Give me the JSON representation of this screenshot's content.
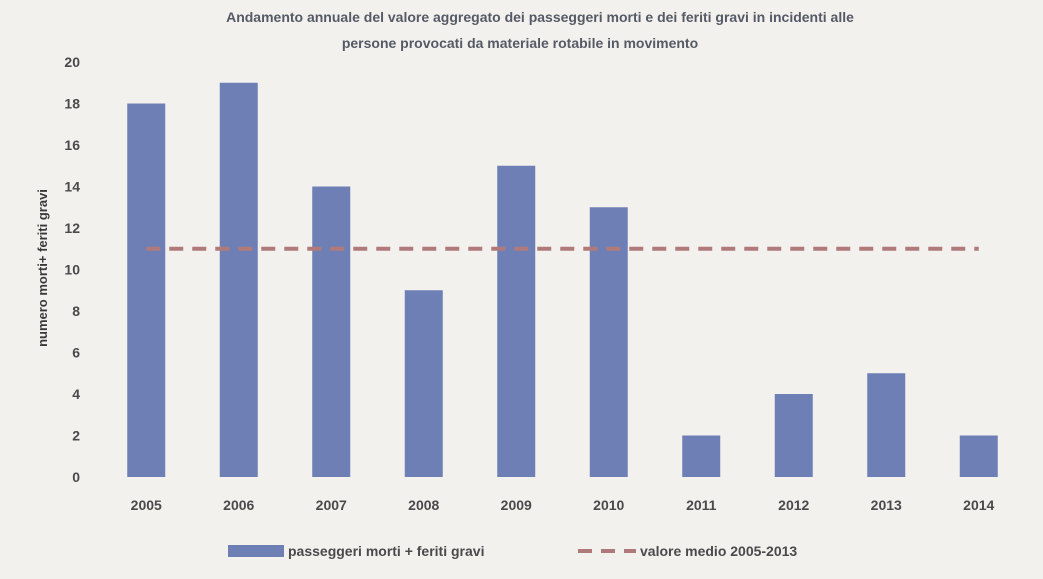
{
  "chart_data": {
    "type": "bar",
    "title_line1": "Andamento annuale del valore aggregato dei passeggeri morti e dei feriti gravi in incidenti alle",
    "title_line2": "persone provocati da materiale rotabile in movimento",
    "xlabel": "",
    "ylabel": "numero morti+ feriti gravi",
    "ylim": [
      0,
      20
    ],
    "yticks": [
      0,
      2,
      4,
      6,
      8,
      10,
      12,
      14,
      16,
      18,
      20
    ],
    "categories": [
      "2005",
      "2006",
      "2007",
      "2008",
      "2009",
      "2010",
      "2011",
      "2012",
      "2013",
      "2014"
    ],
    "series": [
      {
        "name": "passeggeri morti + feriti gravi",
        "kind": "bar",
        "color": "#6e7fb5",
        "values": [
          18,
          19,
          14,
          9,
          15,
          13,
          2,
          4,
          5,
          2
        ]
      },
      {
        "name": "valore medio 2005-2013",
        "kind": "dashed-line",
        "color": "#b07a7a",
        "values": [
          11,
          11,
          11,
          11,
          11,
          11,
          11,
          11,
          11,
          11
        ]
      }
    ],
    "grid": false,
    "legend_position": "bottom"
  }
}
